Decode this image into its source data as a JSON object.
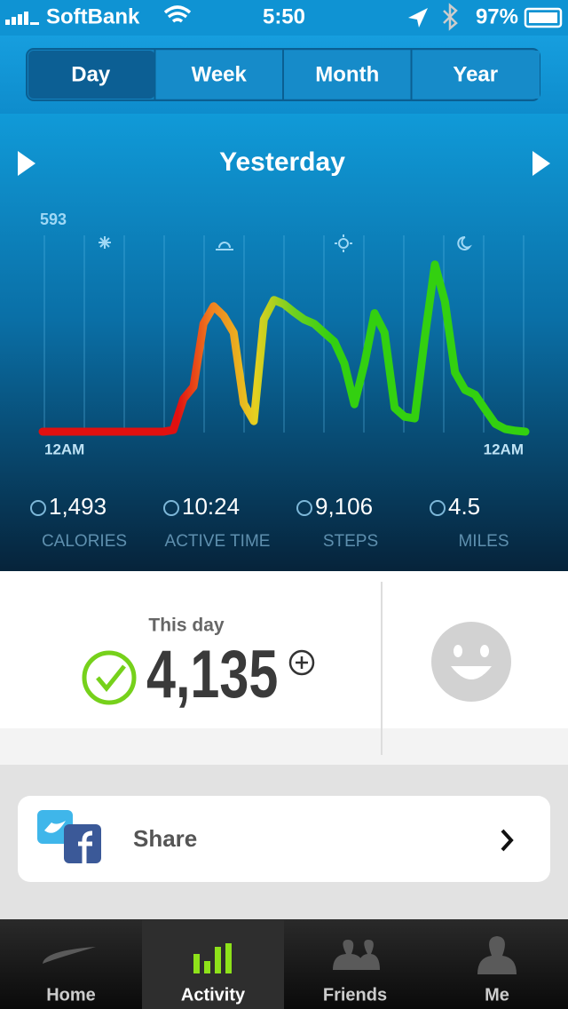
{
  "status_bar": {
    "carrier": "SoftBank",
    "time": "5:50",
    "battery": "97%"
  },
  "tabs": {
    "items": [
      "Day",
      "Week",
      "Month",
      "Year"
    ],
    "active": 0
  },
  "date_label": "Yesterday",
  "activity": {
    "ymax": 593,
    "start_label": "12AM",
    "end_label": "12AM",
    "values": [
      0,
      0,
      0,
      0,
      0,
      0,
      0,
      0,
      0,
      0,
      0,
      0,
      0,
      5,
      99,
      136,
      326,
      379,
      350,
      299,
      85,
      32,
      339,
      398,
      385,
      361,
      339,
      326,
      299,
      272,
      206,
      83,
      206,
      358,
      299,
      72,
      45,
      40,
      286,
      505,
      393,
      179,
      126,
      112,
      67,
      24,
      8,
      3,
      0
    ]
  },
  "stats": [
    {
      "value": "1,493",
      "label": "CALORIES"
    },
    {
      "value": "10:24",
      "label": "ACTIVE TIME"
    },
    {
      "value": "9,106",
      "label": "STEPS"
    },
    {
      "value": "4.5",
      "label": "MILES"
    }
  ],
  "summary": {
    "caption": "This day",
    "fuel": "4,135"
  },
  "share": "Share",
  "nav": {
    "items": [
      "Home",
      "Activity",
      "Friends",
      "Me"
    ],
    "active": 1
  }
}
